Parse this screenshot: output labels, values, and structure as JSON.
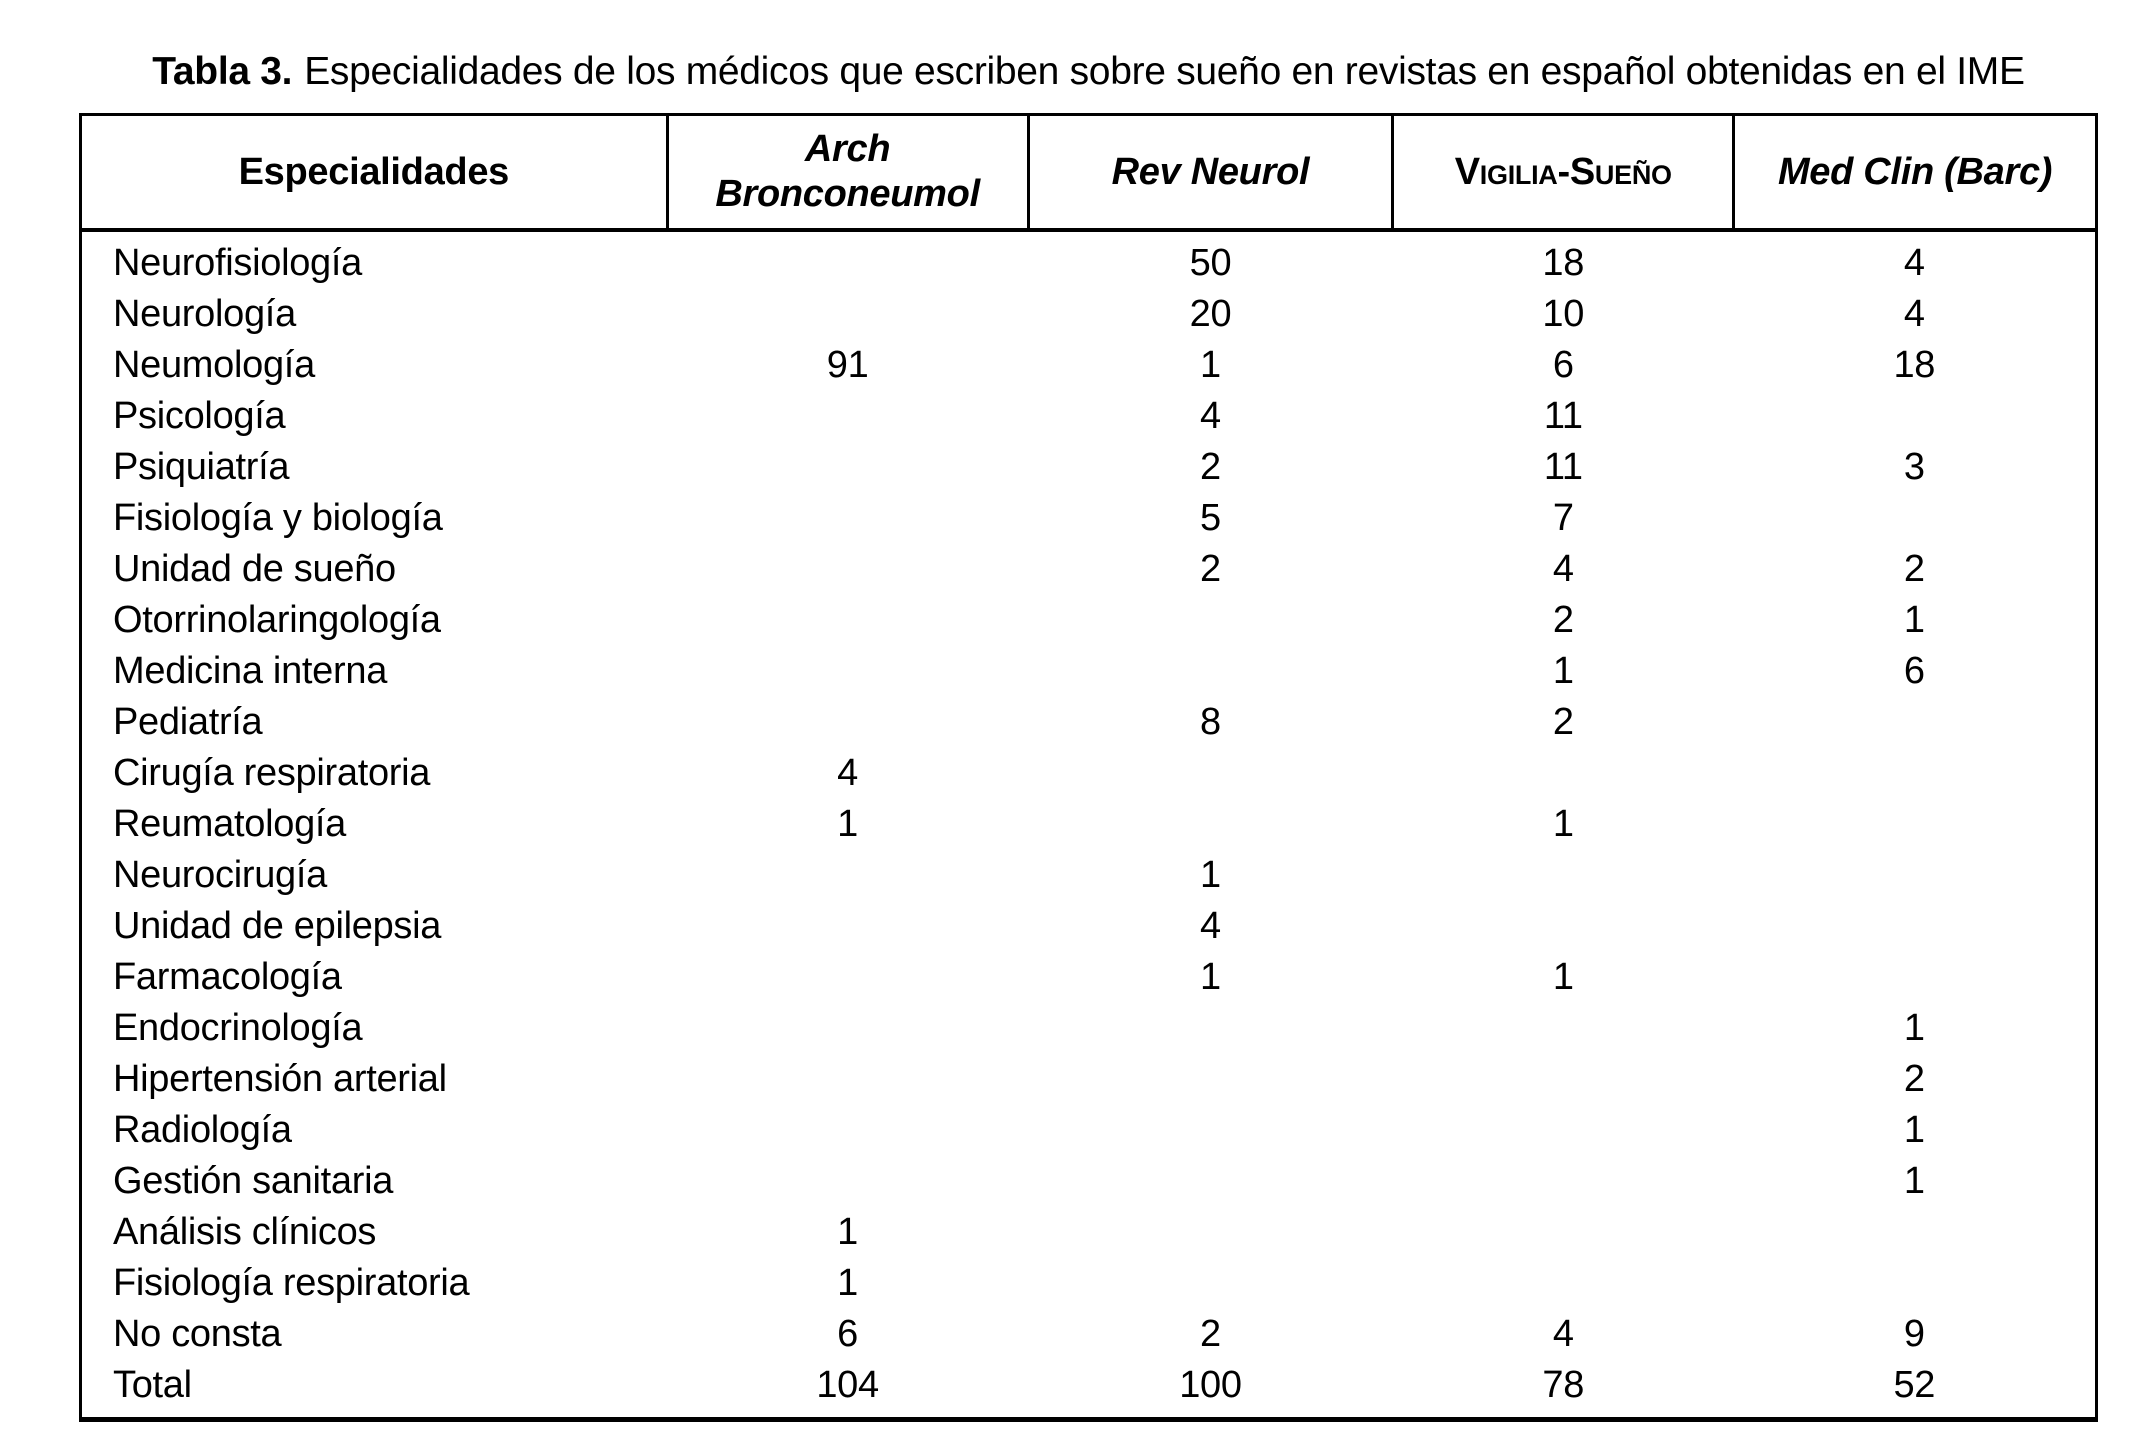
{
  "caption": {
    "label": "Tabla 3.",
    "text": "Especialidades de los médicos que escriben sobre sueño en revistas en español obtenidas en el IME"
  },
  "colors": {
    "text": "#000000",
    "background": "#ffffff",
    "border": "#000000"
  },
  "table": {
    "columns": [
      {
        "key": "especialidades",
        "label": "Especialidades",
        "style": "bold"
      },
      {
        "key": "arch-bronconeumol",
        "label": "Arch Bronconeumol",
        "style": "bold-italic"
      },
      {
        "key": "rev-neurol",
        "label": "Rev Neurol",
        "style": "bold-italic"
      },
      {
        "key": "vigilia-sueno",
        "label": "Vigilia-Sueño",
        "style": "small-caps-bold"
      },
      {
        "key": "med-clin-barc",
        "label": "Med Clin (Barc)",
        "style": "bold-italic"
      }
    ],
    "rows": [
      {
        "values": [
          "Neurofisiología",
          "",
          "50",
          "18",
          "4"
        ]
      },
      {
        "values": [
          "Neurología",
          "",
          "20",
          "10",
          "4"
        ]
      },
      {
        "values": [
          "Neumología",
          "91",
          "1",
          "6",
          "18"
        ]
      },
      {
        "values": [
          "Psicología",
          "",
          "4",
          "11",
          ""
        ]
      },
      {
        "values": [
          "Psiquiatría",
          "",
          "2",
          "11",
          "3"
        ]
      },
      {
        "values": [
          "Fisiología y biología",
          "",
          "5",
          "7",
          ""
        ]
      },
      {
        "values": [
          "Unidad de sueño",
          "",
          "2",
          "4",
          "2"
        ]
      },
      {
        "values": [
          "Otorrinolaringología",
          "",
          "",
          "2",
          "1"
        ]
      },
      {
        "values": [
          "Medicina interna",
          "",
          "",
          "1",
          "6"
        ]
      },
      {
        "values": [
          "Pediatría",
          "",
          "8",
          "2",
          ""
        ]
      },
      {
        "values": [
          "Cirugía respiratoria",
          "4",
          "",
          "",
          ""
        ]
      },
      {
        "values": [
          "Reumatología",
          "1",
          "",
          "1",
          ""
        ]
      },
      {
        "values": [
          "Neurocirugía",
          "",
          "1",
          "",
          ""
        ]
      },
      {
        "values": [
          "Unidad de epilepsia",
          "",
          "4",
          "",
          ""
        ]
      },
      {
        "values": [
          "Farmacología",
          "",
          "1",
          "1",
          ""
        ]
      },
      {
        "values": [
          "Endocrinología",
          "",
          "",
          "",
          "1"
        ]
      },
      {
        "values": [
          "Hipertensión arterial",
          "",
          "",
          "",
          "2"
        ]
      },
      {
        "values": [
          "Radiología",
          "",
          "",
          "",
          "1"
        ]
      },
      {
        "values": [
          "Gestión sanitaria",
          "",
          "",
          "",
          "1"
        ]
      },
      {
        "values": [
          "Análisis clínicos",
          "1",
          "",
          "",
          ""
        ]
      },
      {
        "values": [
          "Fisiología respiratoria",
          "1",
          "",
          "",
          ""
        ]
      },
      {
        "values": [
          "No consta",
          "6",
          "2",
          "4",
          "9"
        ]
      },
      {
        "values": [
          "Total",
          "104",
          "100",
          "78",
          "52"
        ]
      }
    ]
  }
}
